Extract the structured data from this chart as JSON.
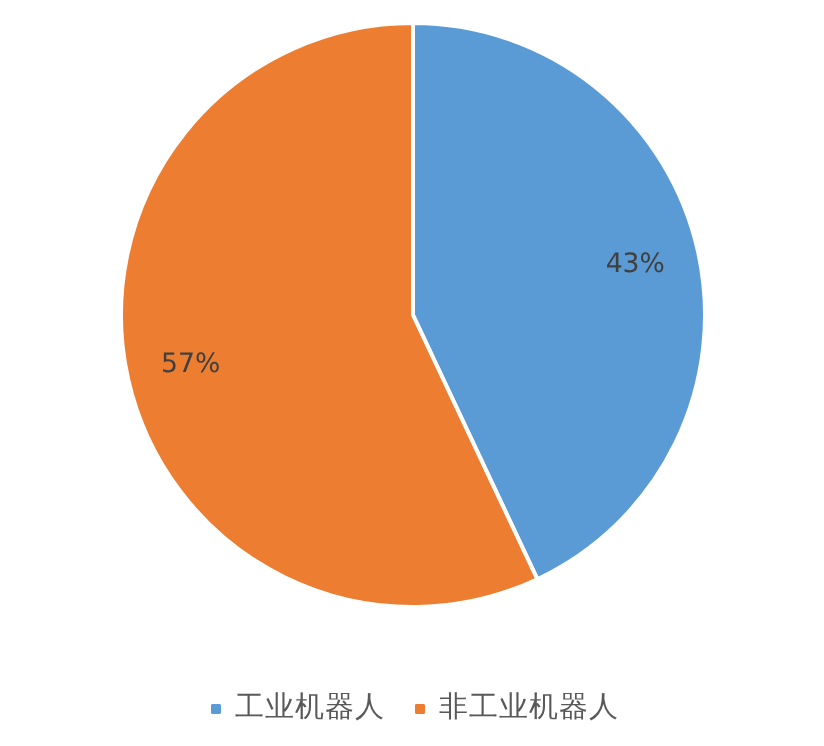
{
  "chart_data": {
    "type": "pie",
    "categories": [
      "工业机器人",
      "非工业机器人"
    ],
    "values": [
      43,
      57
    ],
    "colors": [
      "#5b9bd5",
      "#ed7d31"
    ],
    "value_labels": [
      "43%",
      "57%"
    ],
    "legend": "bottom"
  }
}
